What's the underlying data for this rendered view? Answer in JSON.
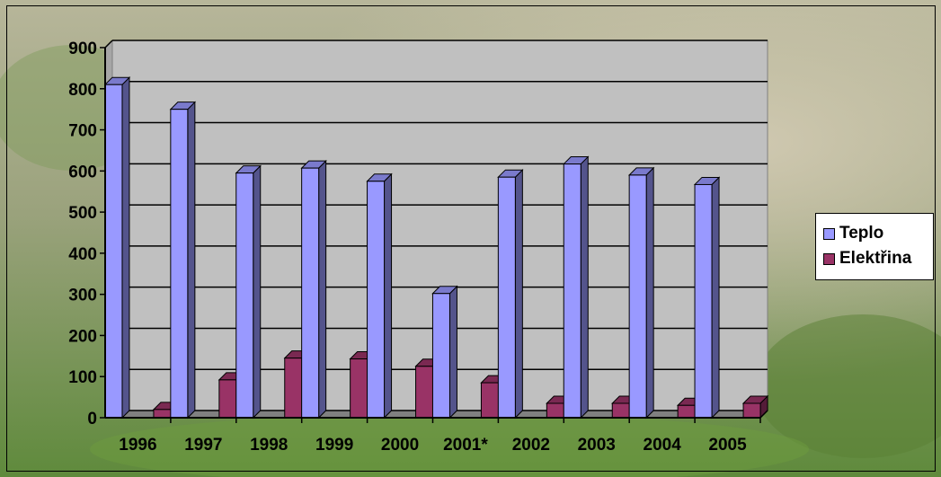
{
  "chart_data": {
    "type": "bar",
    "categories": [
      "1996",
      "1997",
      "1998",
      "1999",
      "2000",
      "2001*",
      "2002",
      "2003",
      "2004",
      "2005"
    ],
    "series": [
      {
        "name": "Teplo",
        "color": "#9999ff",
        "values": [
          810,
          750,
          595,
          607,
          575,
          302,
          585,
          617,
          590,
          567
        ]
      },
      {
        "name": "Elektřina",
        "color": "#993366",
        "values": [
          20,
          92,
          145,
          143,
          125,
          85,
          35,
          35,
          30,
          35
        ]
      }
    ],
    "y_ticks": [
      "0",
      "100",
      "200",
      "300",
      "400",
      "500",
      "600",
      "700",
      "800",
      "900"
    ],
    "ylim": [
      0,
      900
    ],
    "grid": true,
    "legend_position": "right",
    "plot_background": "#c0c0c0"
  }
}
